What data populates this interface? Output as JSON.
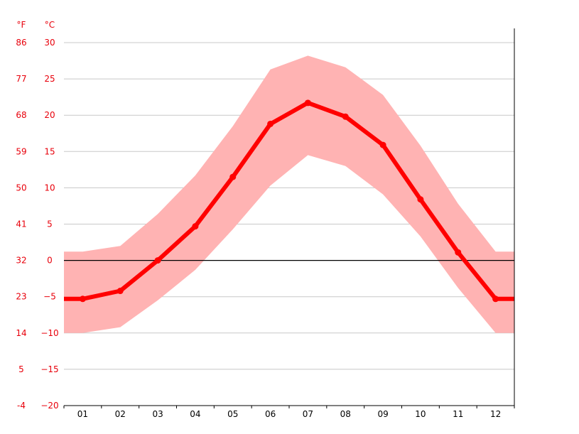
{
  "chart_data": {
    "type": "line",
    "categories": [
      "01",
      "02",
      "03",
      "04",
      "05",
      "06",
      "07",
      "08",
      "09",
      "10",
      "11",
      "12"
    ],
    "series": [
      {
        "values": [
          -5.3,
          -4.2,
          0.0,
          4.7,
          11.5,
          18.8,
          21.7,
          19.8,
          15.9,
          8.4,
          1.1,
          -5.3
        ],
        "low": [
          -10.0,
          -9.2,
          -5.5,
          -1.3,
          4.3,
          10.3,
          14.5,
          13.0,
          9.1,
          3.3,
          -3.8,
          -10.0
        ],
        "high": [
          1.2,
          2.0,
          6.4,
          11.7,
          18.5,
          26.3,
          28.2,
          26.6,
          22.8,
          15.8,
          7.8,
          1.2
        ]
      }
    ],
    "ylim": [
      -20,
      30
    ],
    "yticks_c": [
      30,
      25,
      20,
      15,
      10,
      5,
      0,
      -5,
      -10,
      -15,
      -20
    ],
    "yticks_f": [
      86,
      77,
      68,
      59,
      50,
      41,
      32,
      23,
      14,
      5,
      -4
    ],
    "unit_f": "°F",
    "unit_c": "°C",
    "grid": true,
    "zero_line": true,
    "colors": {
      "line": "#ff0000",
      "band": "#ffb3b3",
      "grid": "#c8c8c8",
      "labels": "#e8000b"
    }
  }
}
